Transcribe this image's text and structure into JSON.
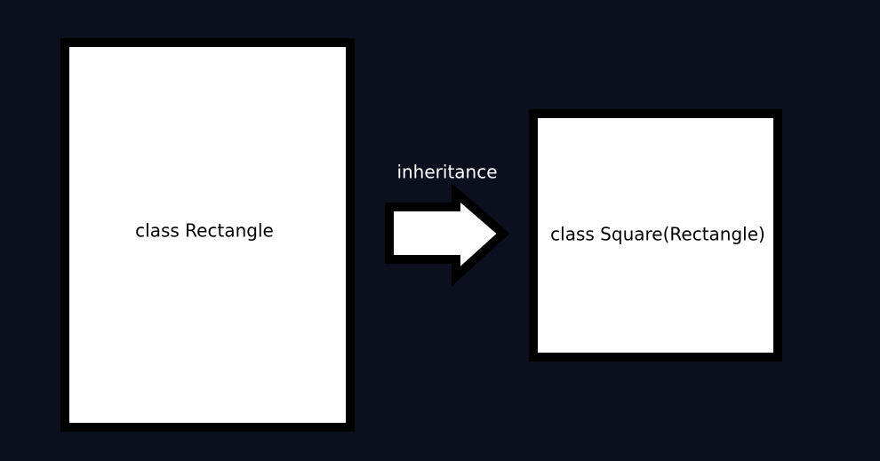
{
  "colors": {
    "background": "#0c101e",
    "box_fill": "#ffffff",
    "box_border": "#000000",
    "label_dark": "#000000",
    "label_light": "#ffffff"
  },
  "nodes": {
    "parent": {
      "label": "class Rectangle"
    },
    "child": {
      "label": "class Square(Rectangle)"
    }
  },
  "edge": {
    "label": "inheritance",
    "icon": "block-arrow-right-icon"
  }
}
